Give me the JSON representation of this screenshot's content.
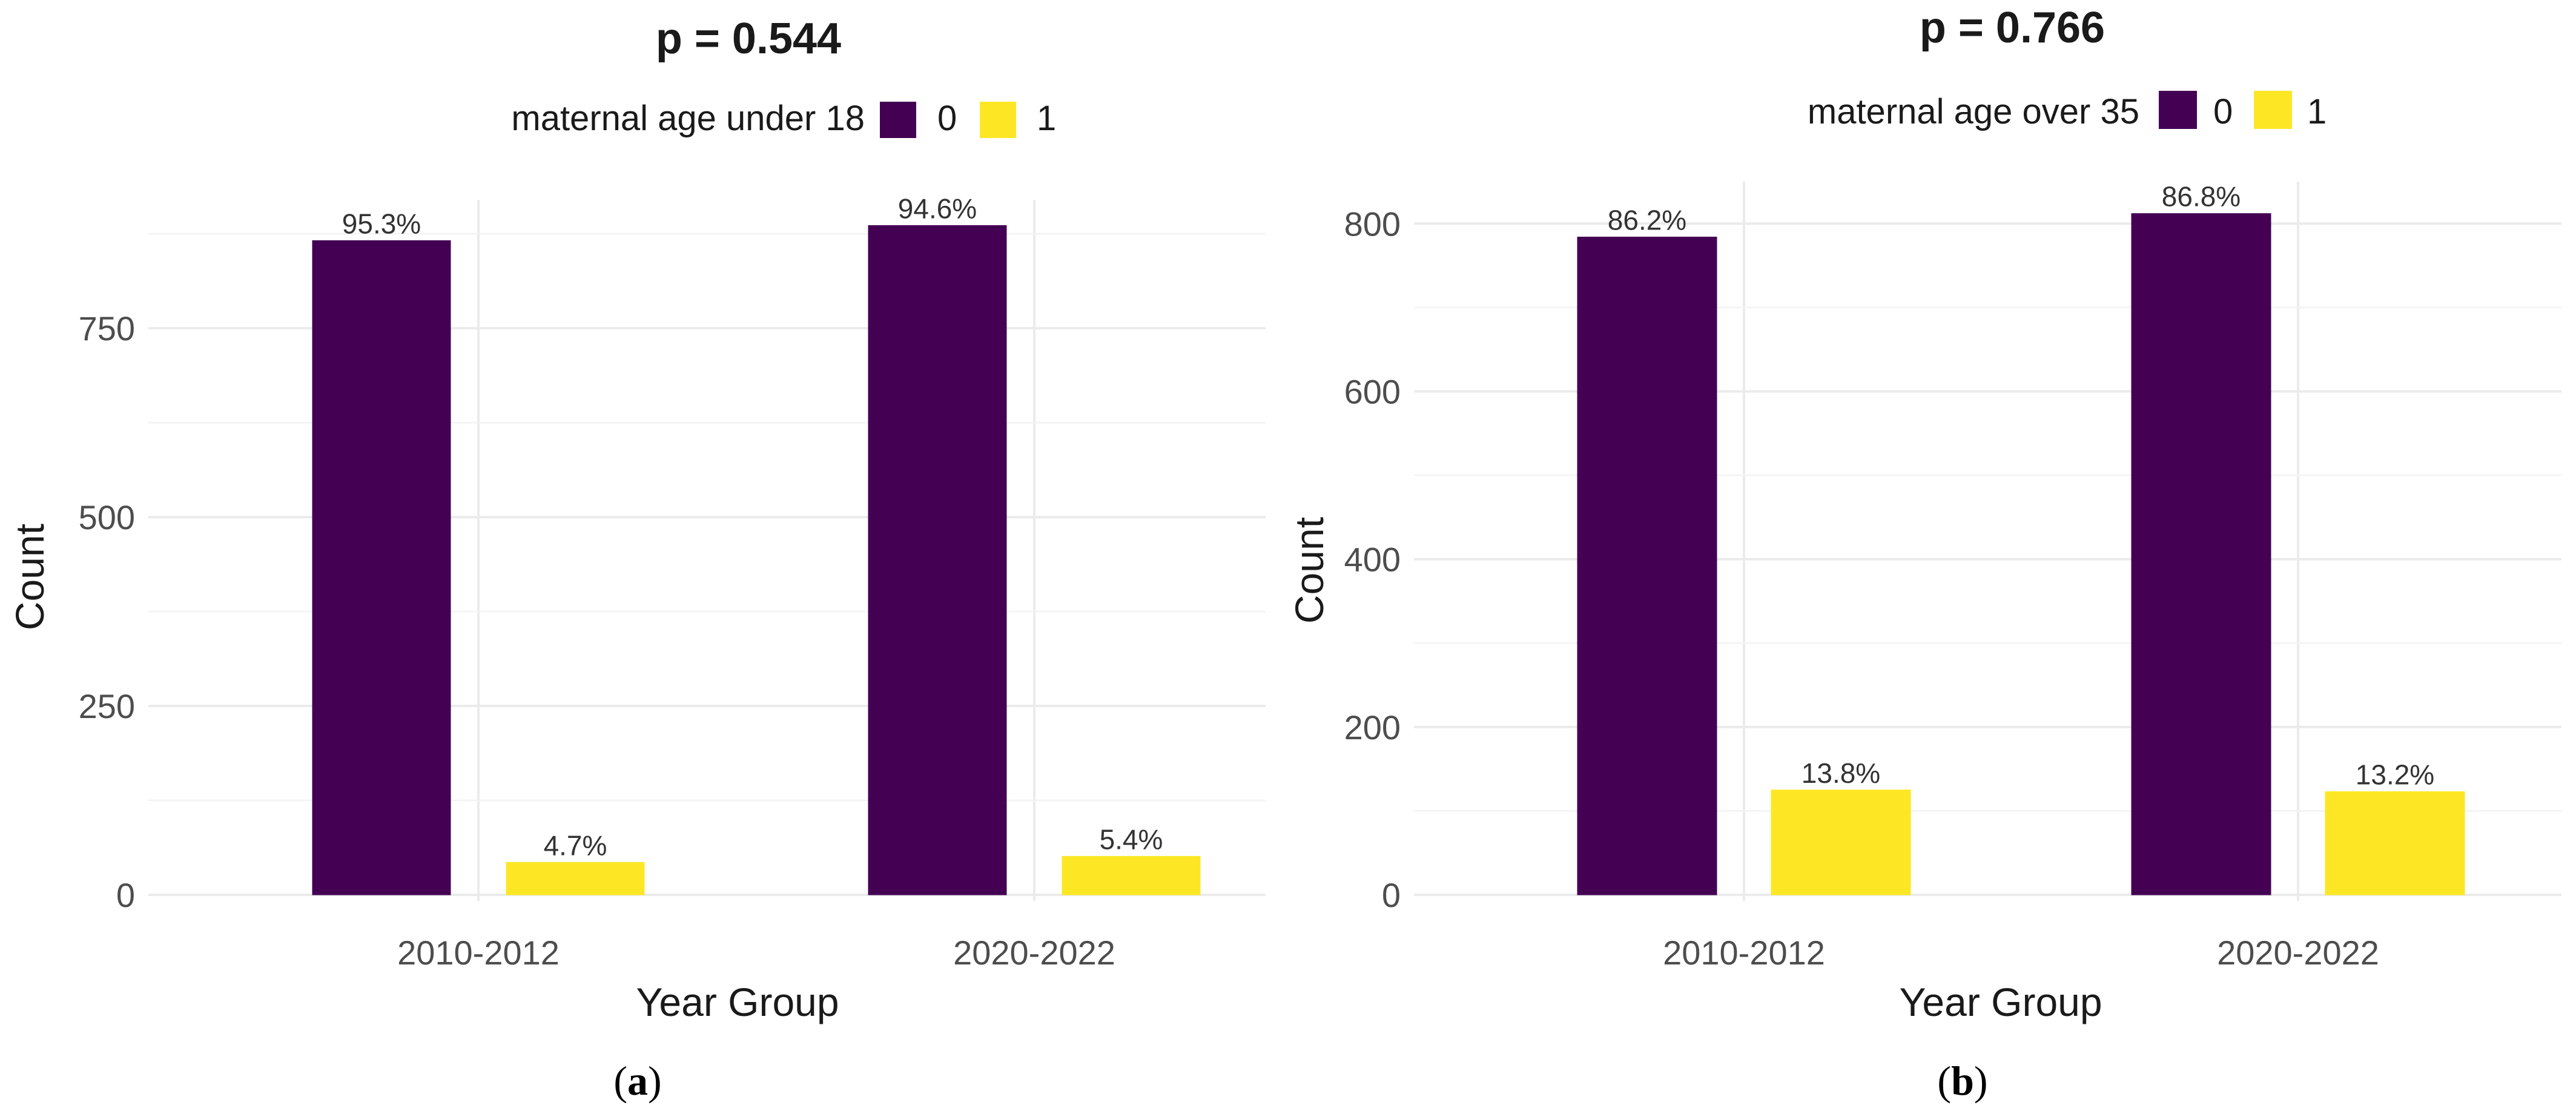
{
  "chart_data": [
    {
      "type": "bar",
      "panel_label": "a",
      "title": "p = 0.544",
      "legend_title": "maternal age under 18",
      "legend_placement": "top",
      "xlabel": "Year Group",
      "ylabel": "Count",
      "categories": [
        "2010-2012",
        "2020-2022"
      ],
      "ylim": [
        0,
        920
      ],
      "yticks": [
        0,
        250,
        500,
        750
      ],
      "grid": true,
      "series": [
        {
          "name": "0",
          "color": "#440154",
          "values": [
            866,
            886
          ],
          "labels": [
            "95.3%",
            "94.6%"
          ]
        },
        {
          "name": "1",
          "color": "#FDE725",
          "values": [
            43,
            51
          ],
          "labels": [
            "4.7%",
            "5.4%"
          ]
        }
      ]
    },
    {
      "type": "bar",
      "panel_label": "b",
      "title": "p = 0.766",
      "legend_title": "maternal age over 35",
      "legend_placement": "top",
      "xlabel": "Year Group",
      "ylabel": "Count",
      "categories": [
        "2010-2012",
        "2020-2022"
      ],
      "ylim": [
        0,
        850
      ],
      "yticks": [
        0,
        200,
        400,
        600,
        800
      ],
      "grid": true,
      "series": [
        {
          "name": "0",
          "color": "#440154",
          "values": [
            784,
            812
          ],
          "labels": [
            "86.2%",
            "86.8%"
          ]
        },
        {
          "name": "1",
          "color": "#FDE725",
          "values": [
            125,
            123
          ],
          "labels": [
            "13.8%",
            "13.2%"
          ]
        }
      ]
    }
  ]
}
